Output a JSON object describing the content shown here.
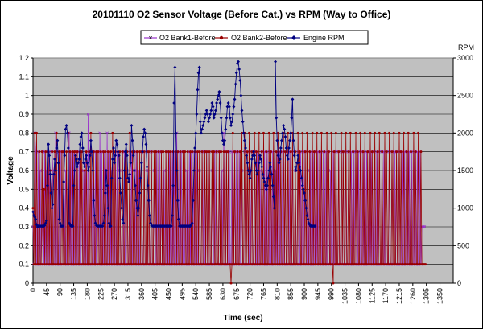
{
  "chart_data": {
    "type": "line",
    "title": "20101110 O2 Sensor Voltage (Before Cat.) vs RPM (Way to Office)",
    "xlabel": "Time (sec)",
    "ylabel": "Voltage",
    "y2label": "RPM",
    "xlim": [
      0,
      1394
    ],
    "ylim": [
      0,
      1.2
    ],
    "y2lim": [
      0,
      3000
    ],
    "x_ticks": [
      "0",
      "45",
      "90",
      "135",
      "180",
      "225",
      "270",
      "315",
      "360",
      "405",
      "450",
      "495",
      "540",
      "585",
      "630",
      "675",
      "720",
      "765",
      "810",
      "855",
      "900",
      "945",
      "990",
      "1035",
      "1080",
      "1125",
      "1170",
      "1215",
      "1260",
      "1305",
      "1350"
    ],
    "y_ticks": [
      "0",
      "0.1",
      "0.2",
      "0.3",
      "0.4",
      "0.5",
      "0.6",
      "0.7",
      "0.8",
      "0.9",
      "1",
      "1.1",
      "1.2"
    ],
    "y2_ticks": [
      "0",
      "500",
      "1000",
      "1500",
      "2000",
      "2500",
      "3000"
    ],
    "grid": "horizontal",
    "plot_background": "#c0c0c0",
    "legend_position": "top",
    "sample_interval_sec": 3,
    "series": [
      {
        "name": "O2 Bank1-Before",
        "axis": "left",
        "color": "#9933cc",
        "marker": "cross",
        "values": [
          0.3,
          0.1,
          0.8,
          0.7,
          0.1,
          0.1,
          0.7,
          0.1,
          0.6,
          0.1,
          0.3,
          0.7,
          0.1,
          0.7,
          0.1,
          0.6,
          0.1,
          0.1,
          0.7,
          0.1,
          0.1,
          0.7,
          0.6,
          0.1,
          0.1,
          0.8,
          0.1,
          0.1,
          0.7,
          0.1,
          0.1,
          0.7,
          0.7,
          0.1,
          0.7,
          0.1,
          0.6,
          0.1,
          0.1,
          0.8,
          0.8,
          0.1,
          0.7,
          0.1,
          0.1,
          0.7,
          0.1,
          0.1,
          0.7,
          0.1,
          0.1,
          0.7,
          0.1,
          0.1,
          0.6,
          0.1,
          0.6,
          0.1,
          0.7,
          0.1,
          0.1,
          0.9,
          0.1,
          0.1,
          0.7,
          0.1,
          0.7,
          0.1,
          0.1,
          0.7,
          0.1,
          0.7,
          0.7,
          0.1,
          0.8,
          0.1,
          0.7,
          0.1,
          0.1,
          0.7,
          0.1,
          0.1,
          0.8,
          0.1,
          0.1,
          0.7,
          0.1,
          0.6,
          0.1,
          0.1,
          0.7,
          0.1,
          0.1,
          0.7,
          0.1,
          0.1,
          0.6,
          0.1,
          0.1,
          0.7,
          0.1,
          0.7,
          0.1,
          0.1,
          0.6,
          0.1,
          0.1,
          0.7,
          0.1,
          0.7,
          0.1,
          0.1,
          0.6,
          0.1,
          0.7,
          0.1,
          0.1,
          0.6,
          0.1,
          0.1,
          0.7,
          0.1,
          0.1,
          0.7,
          0.1,
          0.1,
          0.6,
          0.1,
          0.7,
          0.1,
          0.1,
          0.7,
          0.1,
          0.1,
          0.6,
          0.1,
          0.1,
          0.7,
          0.1,
          0.1,
          0.7,
          0.1,
          0.7,
          0.1,
          0.1,
          0.6,
          0.1,
          0.1,
          0.7,
          0.1,
          0.1,
          0.7,
          0.1,
          0.1,
          0.7,
          0.1,
          0.7,
          0.1,
          0.1,
          0.8,
          0.1,
          0.1,
          0.7,
          0.1,
          0.7,
          0.1,
          0.1,
          0.7,
          0.1,
          0.1,
          0.6,
          0.1,
          0.1,
          0.7,
          0.1,
          0.7,
          0.1,
          0.1,
          0.7,
          0.1,
          0.1,
          0.7,
          0.1,
          0.1,
          0.6,
          0.1,
          0.1,
          0.7,
          0.1,
          0.7,
          0.1,
          0.1,
          0.7,
          0.1,
          0.1,
          0.7,
          0.1,
          0.1,
          0.6,
          0.1,
          0.1,
          0.7,
          0.1,
          0.7,
          0.1,
          0.1,
          0.7,
          0.1,
          0.1,
          0.6,
          0.1,
          0.8,
          0.1,
          0.1,
          0.7,
          0.1,
          0.1,
          0.7,
          0.1,
          0.1,
          0.7,
          0.1,
          0.1,
          0.7,
          0.1,
          0.7,
          0.1,
          0.1,
          0.7,
          0.1,
          0.1,
          0.6,
          0.1,
          0.1,
          0.7,
          0.1,
          0.1,
          0.7,
          0.1,
          0.1,
          0.6,
          0.1,
          0.7,
          0.1,
          0.1,
          0.7,
          0.1,
          0.1,
          0.7,
          0.1,
          0.1,
          0.6,
          0.1,
          0.7,
          0.1,
          0.1,
          0.7,
          0.1,
          0.1,
          0.7,
          0.1,
          0.1,
          0.7,
          0.1,
          0.1,
          0.7,
          0.1,
          0.1,
          0.6,
          0.1,
          0.7,
          0.1,
          0.1,
          0.7,
          0.1,
          0.1,
          0.7,
          0.1,
          0.1,
          0.7,
          0.1,
          0.1,
          0.7,
          0.1,
          0.7,
          0.1,
          0.1,
          0.7,
          0.1,
          0.1,
          0.6,
          0.1,
          0.1,
          0.7,
          0.1,
          0.1,
          0.7,
          0.1,
          0.1,
          0.7,
          0.1,
          0.7,
          0.1,
          0.1,
          0.6,
          0.1,
          0.1,
          0.7,
          0.1,
          0.1,
          0.7,
          0.1,
          0.1,
          0.7,
          0.1,
          0.7,
          0.1,
          0.1,
          0.7,
          0.1,
          0.1,
          0.7,
          0.1,
          0.1,
          0.7,
          0.1,
          0.1,
          0.7,
          0.1,
          0.6,
          0.1,
          0.1,
          0.7,
          0.1,
          0.1,
          0.7,
          0.1,
          0.1,
          0.7,
          0.1,
          0.1,
          0.7,
          0.1,
          0.7,
          0.1,
          0.1,
          0.7,
          0.1,
          0.1,
          0.7,
          0.1,
          0.1,
          0.7,
          0.1,
          0.1,
          0.7,
          0.1,
          0.7,
          0.1,
          0.1,
          0.7,
          0.1,
          0.1,
          0.7,
          0.1,
          0.1,
          0.7,
          0.1,
          0.1,
          0.7,
          0.1,
          0.1,
          0.7,
          0.1,
          0.7,
          0.1,
          0.1,
          0.7,
          0.1,
          0.1,
          0.7,
          0.1,
          0.1,
          0.7,
          0.1,
          0.1,
          0.7,
          0.1,
          0.7,
          0.1,
          0.1,
          0.7,
          0.1,
          0.1,
          0.7,
          0.1,
          0.1,
          0.7,
          0.1,
          0.1,
          0.7,
          0.1,
          0.7,
          0.1,
          0.1,
          0.7,
          0.1,
          0.1,
          0.7,
          0.1,
          0.1,
          0.7,
          0.1,
          0.1,
          0.7,
          0.1,
          0.7,
          0.1,
          0.1,
          0.7,
          0.1,
          0.1,
          0.7,
          0.1,
          0.1,
          0.7,
          0.1,
          0.1,
          0.7,
          0.1,
          0.3,
          0.3,
          0.3,
          0.3
        ]
      },
      {
        "name": "O2 Bank2-Before",
        "axis": "left",
        "color": "#990000",
        "marker": "circle",
        "values": [
          0.4,
          0.1,
          0.8,
          0.1,
          0.8,
          0.1,
          0.1,
          0.7,
          0.1,
          0.1,
          0.7,
          0.1,
          0.5,
          0.1,
          0.7,
          0.1,
          0.1,
          0.7,
          0.1,
          0.6,
          0.1,
          0.7,
          0.1,
          0.1,
          0.7,
          0.1,
          0.8,
          0.1,
          0.1,
          0.7,
          0.1,
          0.1,
          0.7,
          0.1,
          0.7,
          0.1,
          0.1,
          0.7,
          0.1,
          0.8,
          0.1,
          0.7,
          0.1,
          0.1,
          0.7,
          0.1,
          0.7,
          0.1,
          0.1,
          0.7,
          0.1,
          0.1,
          0.7,
          0.1,
          0.7,
          0.1,
          0.1,
          0.6,
          0.1,
          0.7,
          0.1,
          0.1,
          0.7,
          0.1,
          0.8,
          0.1,
          0.1,
          0.7,
          0.1,
          0.1,
          0.7,
          0.1,
          0.7,
          0.1,
          0.1,
          0.7,
          0.1,
          0.1,
          0.7,
          0.1,
          0.7,
          0.1,
          0.1,
          0.7,
          0.1,
          0.1,
          0.7,
          0.1,
          0.8,
          0.1,
          0.1,
          0.7,
          0.1,
          0.1,
          0.7,
          0.1,
          0.7,
          0.1,
          0.1,
          0.7,
          0.1,
          0.1,
          0.7,
          0.1,
          0.7,
          0.1,
          0.1,
          0.8,
          0.1,
          0.1,
          0.7,
          0.1,
          0.7,
          0.1,
          0.1,
          0.7,
          0.1,
          0.1,
          0.7,
          0.1,
          0.7,
          0.1,
          0.1,
          0.7,
          0.1,
          0.1,
          0.7,
          0.1,
          0.7,
          0.1,
          0.1,
          0.7,
          0.1,
          0.1,
          0.7,
          0.1,
          0.7,
          0.1,
          0.1,
          0.7,
          0.1,
          0.1,
          0.7,
          0.1,
          0.7,
          0.1,
          0.1,
          0.7,
          0.1,
          0.1,
          0.7,
          0.1,
          0.7,
          0.1,
          0.1,
          0.7,
          0.1,
          0.1,
          0.7,
          0.1,
          0.7,
          0.1,
          0.1,
          0.7,
          0.1,
          0.1,
          0.7,
          0.1,
          0.7,
          0.1,
          0.1,
          0.7,
          0.1,
          0.1,
          0.7,
          0.1,
          0.7,
          0.1,
          0.1,
          0.7,
          0.1,
          0.1,
          0.7,
          0.1,
          0.7,
          0.1,
          0.1,
          0.7,
          0.1,
          0.1,
          0.7,
          0.1,
          0.7,
          0.1,
          0.1,
          0.7,
          0.1,
          0.1,
          0.7,
          0.1,
          0.7,
          0.1,
          0.1,
          0.7,
          0.1,
          0.1,
          0.7,
          0.1,
          0.7,
          0.1,
          0.1,
          0.7,
          0.1,
          0.1,
          0.7,
          0.1,
          0.7,
          0.1,
          0.1,
          0.0,
          0.1,
          0.8,
          0.1,
          0.7,
          0.1,
          0.1,
          0.7,
          0.1,
          0.1,
          0.7,
          0.1,
          0.8,
          0.1,
          0.1,
          0.8,
          0.1,
          0.1,
          0.7,
          0.1,
          0.8,
          0.1,
          0.1,
          0.7,
          0.1,
          0.1,
          0.8,
          0.1,
          0.7,
          0.1,
          0.1,
          0.8,
          0.1,
          0.1,
          0.7,
          0.1,
          0.8,
          0.1,
          0.1,
          0.7,
          0.1,
          0.1,
          0.8,
          0.1,
          0.7,
          0.1,
          0.1,
          0.8,
          0.1,
          0.1,
          0.7,
          0.1,
          0.8,
          0.1,
          0.1,
          0.7,
          0.1,
          0.1,
          0.8,
          0.1,
          0.7,
          0.1,
          0.1,
          0.8,
          0.1,
          0.1,
          0.7,
          0.1,
          0.8,
          0.1,
          0.1,
          0.7,
          0.1,
          0.1,
          0.8,
          0.1,
          0.7,
          0.1,
          0.1,
          0.8,
          0.1,
          0.1,
          0.7,
          0.1,
          0.8,
          0.1,
          0.1,
          0.7,
          0.1,
          0.1,
          0.8,
          0.1,
          0.7,
          0.1,
          0.1,
          0.8,
          0.1,
          0.1,
          0.7,
          0.1,
          0.8,
          0.1,
          0.1,
          0.7,
          0.1,
          0.1,
          0.8,
          0.1,
          0.7,
          0.1,
          0.1,
          0.8,
          0.1,
          0.0,
          0.7,
          0.1,
          0.8,
          0.1,
          0.1,
          0.7,
          0.1,
          0.1,
          0.8,
          0.1,
          0.7,
          0.1,
          0.1,
          0.8,
          0.1,
          0.1,
          0.7,
          0.1,
          0.8,
          0.1,
          0.1,
          0.7,
          0.1,
          0.1,
          0.8,
          0.1,
          0.7,
          0.1,
          0.1,
          0.8,
          0.1,
          0.1,
          0.7,
          0.1,
          0.8,
          0.1,
          0.1,
          0.7,
          0.1,
          0.1,
          0.8,
          0.1,
          0.7,
          0.1,
          0.1,
          0.8,
          0.1,
          0.1,
          0.7,
          0.1,
          0.8,
          0.1,
          0.1,
          0.7,
          0.1,
          0.1,
          0.8,
          0.1,
          0.7,
          0.1,
          0.1,
          0.8,
          0.1,
          0.1,
          0.7,
          0.1,
          0.8,
          0.1,
          0.1,
          0.7,
          0.1,
          0.1,
          0.8,
          0.1,
          0.7,
          0.1,
          0.1,
          0.8,
          0.1,
          0.1,
          0.7,
          0.1,
          0.8,
          0.1,
          0.1,
          0.7,
          0.1,
          0.1,
          0.8,
          0.1,
          0.7,
          0.1,
          0.1,
          0.8,
          0.1,
          0.1,
          0.7,
          0.1,
          0.1,
          0.1,
          0.1,
          0.1
        ]
      },
      {
        "name": "Engine RPM",
        "axis": "right",
        "color": "#000080",
        "marker": "diamond",
        "values": [
          950,
          900,
          880,
          850,
          780,
          750,
          760,
          760,
          760,
          760,
          760,
          760,
          760,
          770,
          800,
          830,
          1300,
          1850,
          1700,
          1450,
          1200,
          1000,
          1050,
          1450,
          1650,
          1500,
          1800,
          1900,
          1600,
          850,
          800,
          760,
          760,
          760,
          1350,
          1700,
          2050,
          2100,
          2000,
          1800,
          800,
          780,
          760,
          760,
          760,
          1300,
          1500,
          1700,
          1650,
          1550,
          1600,
          1650,
          1850,
          1950,
          2000,
          1800,
          1600,
          1550,
          1650,
          1700,
          1600,
          1500,
          1550,
          1700,
          1900,
          1750,
          1500,
          1100,
          900,
          800,
          770,
          760,
          760,
          760,
          760,
          760,
          760,
          760,
          800,
          900,
          1200,
          1500,
          1300,
          1000,
          800,
          760,
          760,
          1400,
          1650,
          1800,
          1600,
          1700,
          1900,
          1850,
          1750,
          1700,
          1400,
          1200,
          1000,
          850,
          800,
          1500,
          1750,
          1850,
          1700,
          1400,
          1350,
          1450,
          1600,
          2100,
          1900,
          1700,
          1500,
          1300,
          1100,
          1000,
          900,
          1000,
          1200,
          1400,
          1600,
          1750,
          1950,
          2050,
          2000,
          1850,
          1550,
          1300,
          1100,
          900,
          800,
          770,
          760,
          760,
          760,
          760,
          760,
          760,
          760,
          760,
          760,
          760,
          760,
          760,
          760,
          760,
          760,
          760,
          760,
          760,
          760,
          760,
          760,
          760,
          900,
          1300,
          2400,
          2875,
          2000,
          1500,
          1100,
          850,
          760,
          760,
          760,
          760,
          760,
          760,
          760,
          760,
          760,
          760,
          760,
          760,
          760,
          780,
          800,
          1100,
          1500,
          1800,
          2000,
          2250,
          2575,
          2800,
          2875,
          2150,
          2000,
          2050,
          2100,
          2150,
          2200,
          2250,
          2300,
          2250,
          2150,
          2200,
          2250,
          2300,
          2400,
          2350,
          2200,
          2250,
          2300,
          2400,
          2450,
          2500,
          2550,
          2400,
          2200,
          2000,
          1900,
          1850,
          1900,
          2050,
          2200,
          2350,
          2400,
          2350,
          2200,
          2100,
          2150,
          2250,
          2350,
          2450,
          2650,
          2800,
          2925,
          2950,
          2850,
          2700,
          2500,
          2300,
          2150,
          2000,
          1900,
          1800,
          1700,
          1600,
          1500,
          1450,
          1400,
          1500,
          1650,
          1700,
          1750,
          1700,
          1600,
          1500,
          1450,
          1500,
          1600,
          1700,
          1650,
          1550,
          1450,
          1400,
          1350,
          1300,
          1250,
          1300,
          1400,
          1500,
          1600,
          1550,
          1450,
          1300,
          1150,
          1000,
          2950,
          2200,
          1900,
          1700,
          1600,
          1650,
          1800,
          1900,
          2000,
          2100,
          2050,
          1950,
          1800,
          1700,
          1650,
          1800,
          1900,
          2000,
          2200,
          2450,
          1900,
          1700,
          1550,
          1500,
          1600,
          1700,
          1600,
          1550,
          1500,
          1400,
          1300,
          1250,
          1200,
          1100,
          1000,
          900,
          850,
          800,
          780,
          760,
          760,
          760,
          760,
          760,
          760
        ]
      }
    ]
  }
}
